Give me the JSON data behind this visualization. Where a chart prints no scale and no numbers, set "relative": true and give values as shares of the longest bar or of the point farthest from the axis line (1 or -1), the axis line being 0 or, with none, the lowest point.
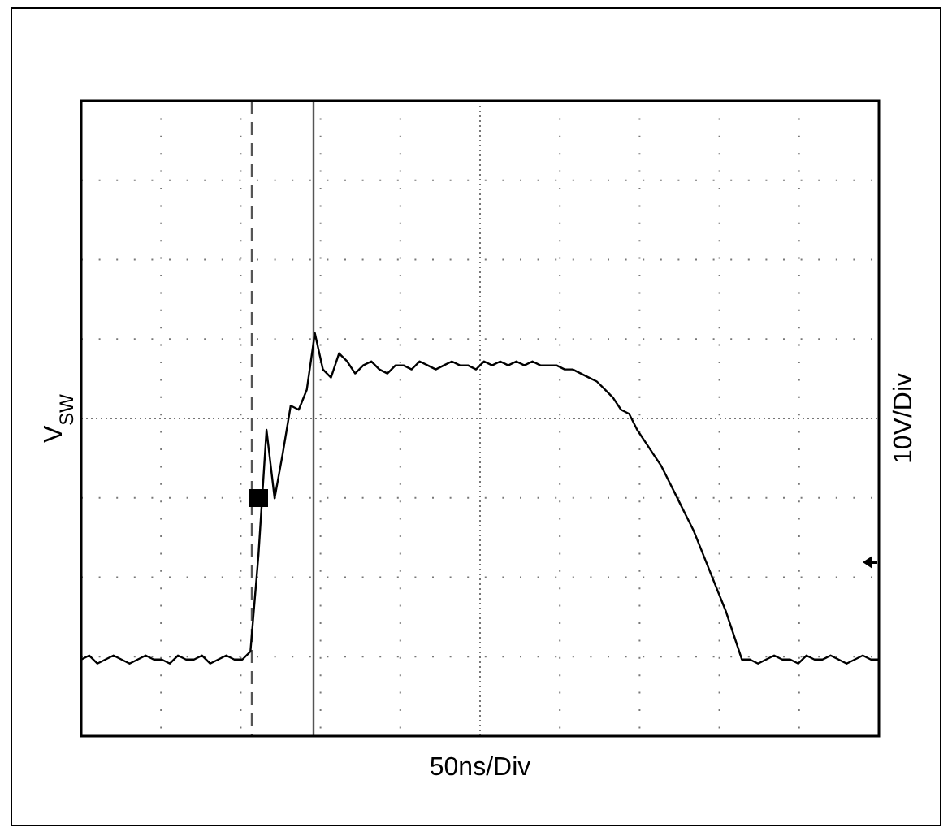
{
  "chart_data": {
    "type": "line",
    "relative": true,
    "xlabel": "50ns/Div",
    "ylabel": "V$_{SW}$",
    "y2label": "10V/Div",
    "grid": true,
    "line_style": "solid",
    "categories": [
      null,
      null,
      null,
      null,
      null,
      null,
      null,
      null,
      null,
      null,
      null,
      null,
      null,
      null,
      null,
      null,
      null,
      null,
      null,
      null,
      null,
      null,
      null,
      null,
      null,
      null,
      null,
      null,
      null,
      null,
      null,
      null,
      null,
      null,
      null,
      null,
      null,
      null,
      null,
      null,
      null,
      null,
      null,
      null,
      null,
      null,
      null,
      null,
      null,
      null,
      null,
      null,
      null,
      null,
      null,
      null,
      null,
      null,
      null,
      null,
      null,
      null,
      null,
      null,
      null,
      null,
      null,
      null,
      null,
      null,
      null,
      null,
      null,
      null,
      null,
      null,
      null,
      null,
      null,
      null,
      null,
      null,
      null,
      null,
      null,
      null,
      null,
      null,
      null,
      null,
      null,
      null,
      null,
      null,
      null,
      null,
      null,
      null,
      null,
      null
    ],
    "series": [
      {
        "color": "#000000",
        "values": [
          0.19,
          0.2,
          0.18,
          0.19,
          0.2,
          0.19,
          0.18,
          0.19,
          0.2,
          0.19,
          0.19,
          0.18,
          0.2,
          0.19,
          0.19,
          0.2,
          0.18,
          0.19,
          0.2,
          0.19,
          0.19,
          0.21,
          0.45,
          0.76,
          0.59,
          0.7,
          0.82,
          0.81,
          0.86,
          1.0,
          0.91,
          0.89,
          0.95,
          0.93,
          0.9,
          0.92,
          0.93,
          0.91,
          0.9,
          0.92,
          0.92,
          0.91,
          0.93,
          0.92,
          0.91,
          0.92,
          0.93,
          0.92,
          0.92,
          0.91,
          0.93,
          0.92,
          0.93,
          0.92,
          0.93,
          0.92,
          0.93,
          0.92,
          0.92,
          0.92,
          0.91,
          0.91,
          0.9,
          0.89,
          0.88,
          0.86,
          0.84,
          0.81,
          0.8,
          0.76,
          0.73,
          0.7,
          0.67,
          0.63,
          0.59,
          0.55,
          0.51,
          0.46,
          0.41,
          0.36,
          0.31,
          0.25,
          0.19,
          0.19,
          0.18,
          0.19,
          0.2,
          0.19,
          0.19,
          0.18,
          0.2,
          0.19,
          0.19,
          0.2,
          0.19,
          0.18,
          0.19,
          0.2,
          0.19,
          0.19
        ]
      }
    ]
  }
}
